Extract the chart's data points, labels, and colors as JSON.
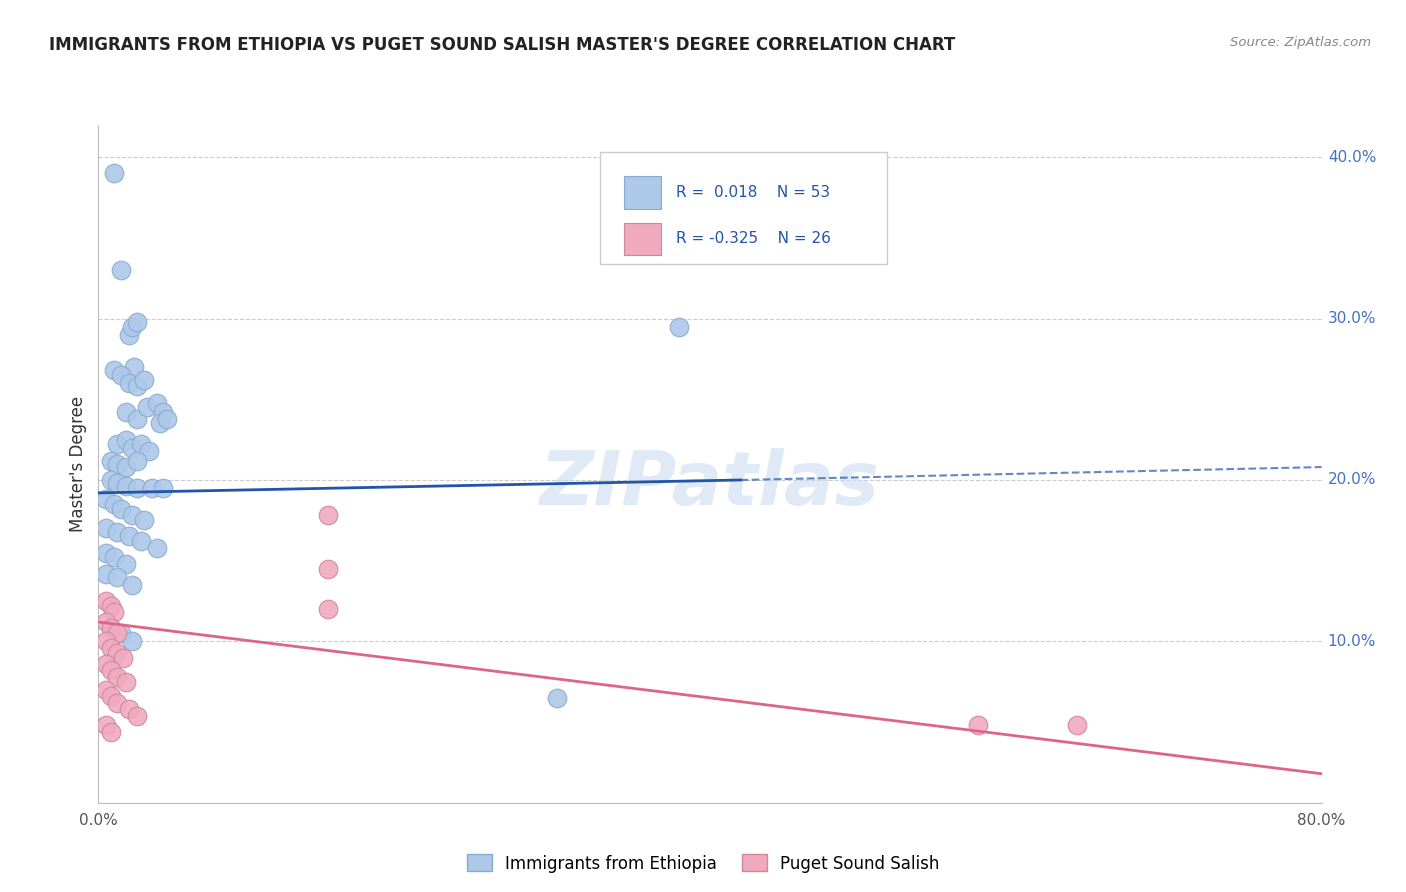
{
  "title": "IMMIGRANTS FROM ETHIOPIA VS PUGET SOUND SALISH MASTER'S DEGREE CORRELATION CHART",
  "source": "Source: ZipAtlas.com",
  "ylabel": "Master's Degree",
  "xlim": [
    0,
    0.8
  ],
  "ylim": [
    0,
    0.42
  ],
  "xticks": [
    0.0,
    0.1,
    0.2,
    0.3,
    0.4,
    0.5,
    0.6,
    0.7,
    0.8
  ],
  "yticks": [
    0.0,
    0.1,
    0.2,
    0.3,
    0.4
  ],
  "blue_color": "#adc8e8",
  "pink_color": "#f0aac0",
  "blue_line_color": "#2255aa",
  "pink_line_color": "#dd6688",
  "grid_color": "#cccccc",
  "watermark": "ZIPatlas",
  "blue_dots": [
    [
      0.01,
      0.39
    ],
    [
      0.015,
      0.33
    ],
    [
      0.02,
      0.29
    ],
    [
      0.022,
      0.295
    ],
    [
      0.025,
      0.298
    ],
    [
      0.023,
      0.27
    ],
    [
      0.01,
      0.268
    ],
    [
      0.015,
      0.265
    ],
    [
      0.02,
      0.26
    ],
    [
      0.025,
      0.258
    ],
    [
      0.03,
      0.262
    ],
    [
      0.018,
      0.242
    ],
    [
      0.025,
      0.238
    ],
    [
      0.032,
      0.245
    ],
    [
      0.038,
      0.248
    ],
    [
      0.042,
      0.242
    ],
    [
      0.012,
      0.222
    ],
    [
      0.018,
      0.225
    ],
    [
      0.022,
      0.22
    ],
    [
      0.028,
      0.222
    ],
    [
      0.033,
      0.218
    ],
    [
      0.04,
      0.235
    ],
    [
      0.045,
      0.238
    ],
    [
      0.008,
      0.212
    ],
    [
      0.012,
      0.21
    ],
    [
      0.018,
      0.208
    ],
    [
      0.025,
      0.212
    ],
    [
      0.008,
      0.2
    ],
    [
      0.012,
      0.198
    ],
    [
      0.018,
      0.196
    ],
    [
      0.025,
      0.195
    ],
    [
      0.035,
      0.195
    ],
    [
      0.042,
      0.195
    ],
    [
      0.005,
      0.188
    ],
    [
      0.01,
      0.185
    ],
    [
      0.015,
      0.182
    ],
    [
      0.022,
      0.178
    ],
    [
      0.03,
      0.175
    ],
    [
      0.005,
      0.17
    ],
    [
      0.012,
      0.168
    ],
    [
      0.02,
      0.165
    ],
    [
      0.028,
      0.162
    ],
    [
      0.038,
      0.158
    ],
    [
      0.005,
      0.155
    ],
    [
      0.01,
      0.152
    ],
    [
      0.018,
      0.148
    ],
    [
      0.005,
      0.142
    ],
    [
      0.012,
      0.14
    ],
    [
      0.022,
      0.135
    ],
    [
      0.008,
      0.108
    ],
    [
      0.015,
      0.105
    ],
    [
      0.022,
      0.1
    ],
    [
      0.3,
      0.065
    ],
    [
      0.38,
      0.295
    ]
  ],
  "pink_dots": [
    [
      0.005,
      0.125
    ],
    [
      0.008,
      0.122
    ],
    [
      0.01,
      0.118
    ],
    [
      0.005,
      0.112
    ],
    [
      0.008,
      0.108
    ],
    [
      0.012,
      0.105
    ],
    [
      0.005,
      0.1
    ],
    [
      0.008,
      0.096
    ],
    [
      0.012,
      0.093
    ],
    [
      0.016,
      0.09
    ],
    [
      0.005,
      0.086
    ],
    [
      0.008,
      0.082
    ],
    [
      0.012,
      0.078
    ],
    [
      0.018,
      0.075
    ],
    [
      0.005,
      0.07
    ],
    [
      0.008,
      0.066
    ],
    [
      0.012,
      0.062
    ],
    [
      0.02,
      0.058
    ],
    [
      0.025,
      0.054
    ],
    [
      0.005,
      0.048
    ],
    [
      0.008,
      0.044
    ],
    [
      0.15,
      0.178
    ],
    [
      0.15,
      0.145
    ],
    [
      0.15,
      0.12
    ],
    [
      0.575,
      0.048
    ],
    [
      0.64,
      0.048
    ]
  ],
  "blue_trend_solid": [
    0.0,
    0.42,
    0.192,
    0.2
  ],
  "blue_trend_dashed": [
    0.42,
    0.8,
    0.2,
    0.208
  ],
  "pink_trend": [
    0.0,
    0.8,
    0.112,
    0.018
  ]
}
